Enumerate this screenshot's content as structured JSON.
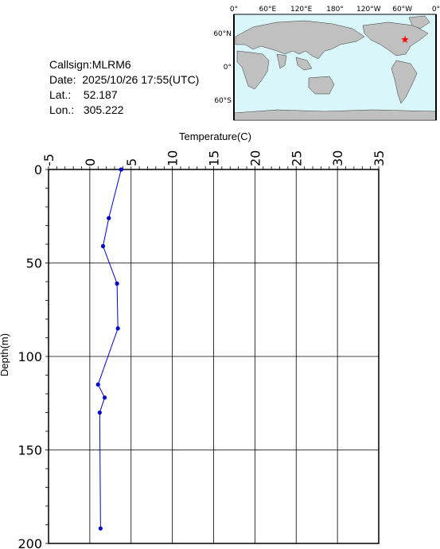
{
  "info": {
    "callsign_label": "Callsign:",
    "callsign": "MLRM6",
    "date_label": "Date:",
    "date": "2025/10/26 17:55(UTC)",
    "lat_label": "Lat.:",
    "lat": "52.187",
    "lon_label": "Lon.:",
    "lon": "305.222"
  },
  "map": {
    "top_labels": [
      "0°",
      "60°E",
      "120°E",
      "180°",
      "120°W",
      "60°W",
      "0°"
    ],
    "side_labels": [
      "60°N",
      "0°",
      "60°S"
    ],
    "ocean_color": "#d9f6fb",
    "land_color": "#c0c0c0",
    "marker": "red-star",
    "marker_color": "#ff0000"
  },
  "chart_data": {
    "type": "line",
    "orientation": "profile",
    "xlabel": "Temperature(C)",
    "ylabel": "Depth(m)",
    "xlim": [
      -5,
      35
    ],
    "ylim": [
      0,
      200
    ],
    "y_inverted": true,
    "x_ticks": [
      -5,
      0,
      5,
      10,
      15,
      20,
      25,
      30,
      35
    ],
    "y_ticks": [
      0,
      50,
      100,
      150,
      200
    ],
    "grid": true,
    "line_color": "#0000cc",
    "series": [
      {
        "points": [
          {
            "temperature": 3.8,
            "depth": 0
          },
          {
            "temperature": 2.3,
            "depth": 26
          },
          {
            "temperature": 1.6,
            "depth": 41
          },
          {
            "temperature": 3.3,
            "depth": 61
          },
          {
            "temperature": 3.4,
            "depth": 85
          },
          {
            "temperature": 1.0,
            "depth": 115
          },
          {
            "temperature": 1.8,
            "depth": 122
          },
          {
            "temperature": 1.2,
            "depth": 130
          },
          {
            "temperature": 1.3,
            "depth": 192
          }
        ]
      }
    ]
  }
}
